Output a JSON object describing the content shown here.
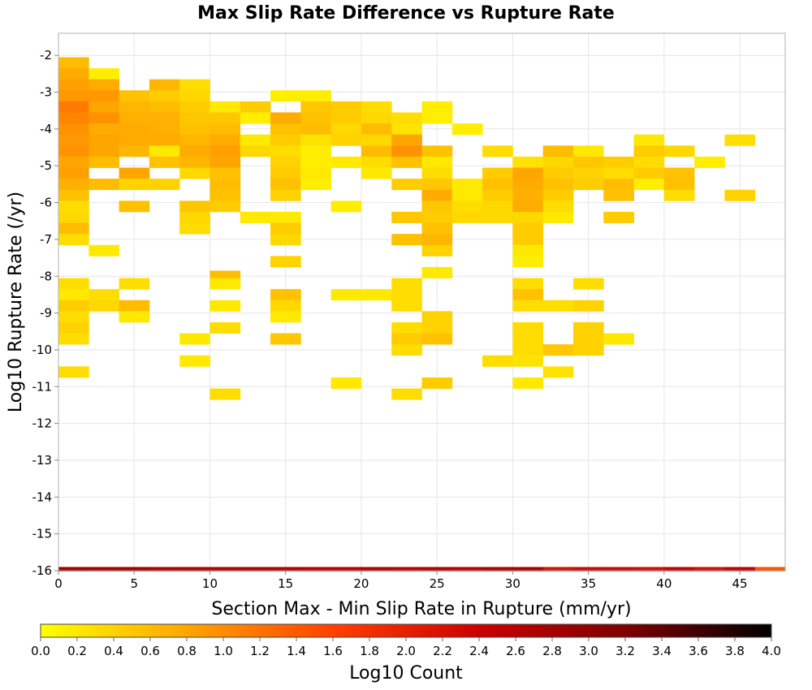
{
  "chart_data": {
    "type": "heatmap",
    "title": "Max Slip Rate Difference vs Rupture Rate",
    "xlabel": "Section Max - Min Slip Rate in Rupture (mm/yr)",
    "ylabel": "Log10 Rupture Rate (/yr)",
    "xlim": [
      0,
      48
    ],
    "ylim": [
      -16,
      -1.4
    ],
    "x_ticks": [
      "0",
      "5",
      "10",
      "15",
      "20",
      "25",
      "30",
      "35",
      "40",
      "45"
    ],
    "y_ticks": [
      "-2",
      "-3",
      "-4",
      "-5",
      "-6",
      "-7",
      "-8",
      "-9",
      "-10",
      "-11",
      "-12",
      "-13",
      "-14",
      "-15",
      "-16"
    ],
    "grid": true,
    "bin_width_x": 2,
    "bin_height_y": 0.3,
    "colorbar": {
      "label": "Log10 Count",
      "min": 0,
      "max": 4,
      "ticks": [
        "0.0",
        "0.2",
        "0.4",
        "0.6",
        "0.8",
        "1.0",
        "1.2",
        "1.4",
        "1.6",
        "1.8",
        "2.0",
        "2.2",
        "2.4",
        "2.6",
        "2.8",
        "3.0",
        "3.2",
        "3.4",
        "3.6",
        "3.8",
        "4.0"
      ],
      "palette": [
        "#ffff00",
        "#ffa500",
        "#ff4000",
        "#cc0000",
        "#800000",
        "#000000"
      ]
    },
    "cells": [
      {
        "x": 0,
        "y": -2.2,
        "v": 0.6
      },
      {
        "x": 0,
        "y": -2.5,
        "v": 0.75
      },
      {
        "x": 0,
        "y": -2.8,
        "v": 0.85
      },
      {
        "x": 0,
        "y": -3.1,
        "v": 0.9
      },
      {
        "x": 0,
        "y": -3.4,
        "v": 1.15
      },
      {
        "x": 0,
        "y": -3.7,
        "v": 1.05
      },
      {
        "x": 0,
        "y": -4.0,
        "v": 0.95
      },
      {
        "x": 0,
        "y": -4.3,
        "v": 0.9
      },
      {
        "x": 0,
        "y": -4.6,
        "v": 0.95
      },
      {
        "x": 0,
        "y": -4.9,
        "v": 0.8
      },
      {
        "x": 0,
        "y": -5.2,
        "v": 0.85
      },
      {
        "x": 0,
        "y": -5.5,
        "v": 0.7
      },
      {
        "x": 0,
        "y": -5.8,
        "v": 0.55
      },
      {
        "x": 0,
        "y": -6.1,
        "v": 0.3
      },
      {
        "x": 0,
        "y": -6.4,
        "v": 0.35
      },
      {
        "x": 0,
        "y": -6.7,
        "v": 0.6
      },
      {
        "x": 0,
        "y": -7.0,
        "v": 0.3
      },
      {
        "x": 0,
        "y": -8.2,
        "v": 0.3
      },
      {
        "x": 0,
        "y": -8.5,
        "v": 0.2
      },
      {
        "x": 0,
        "y": -8.8,
        "v": 0.45
      },
      {
        "x": 0,
        "y": -9.1,
        "v": 0.3
      },
      {
        "x": 0,
        "y": -9.4,
        "v": 0.4
      },
      {
        "x": 0,
        "y": -9.7,
        "v": 0.3
      },
      {
        "x": 0,
        "y": -10.6,
        "v": 0.3
      },
      {
        "x": 2,
        "y": -2.5,
        "v": 0.15
      },
      {
        "x": 2,
        "y": -2.8,
        "v": 0.75
      },
      {
        "x": 2,
        "y": -3.1,
        "v": 0.9
      },
      {
        "x": 2,
        "y": -3.4,
        "v": 0.8
      },
      {
        "x": 2,
        "y": -3.7,
        "v": 0.95
      },
      {
        "x": 2,
        "y": -4.0,
        "v": 0.75
      },
      {
        "x": 2,
        "y": -4.3,
        "v": 0.8
      },
      {
        "x": 2,
        "y": -4.6,
        "v": 0.8
      },
      {
        "x": 2,
        "y": -4.9,
        "v": 0.6
      },
      {
        "x": 2,
        "y": -5.5,
        "v": 0.6
      },
      {
        "x": 2,
        "y": -7.3,
        "v": 0.2
      },
      {
        "x": 2,
        "y": -8.5,
        "v": 0.3
      },
      {
        "x": 2,
        "y": -8.8,
        "v": 0.35
      },
      {
        "x": 4,
        "y": -3.1,
        "v": 0.55
      },
      {
        "x": 4,
        "y": -3.4,
        "v": 0.65
      },
      {
        "x": 4,
        "y": -3.7,
        "v": 0.7
      },
      {
        "x": 4,
        "y": -4.0,
        "v": 0.75
      },
      {
        "x": 4,
        "y": -4.3,
        "v": 0.75
      },
      {
        "x": 4,
        "y": -4.6,
        "v": 0.65
      },
      {
        "x": 4,
        "y": -5.2,
        "v": 0.8
      },
      {
        "x": 4,
        "y": -5.5,
        "v": 0.4
      },
      {
        "x": 4,
        "y": -6.1,
        "v": 0.55
      },
      {
        "x": 4,
        "y": -8.2,
        "v": 0.3
      },
      {
        "x": 4,
        "y": -8.8,
        "v": 0.6
      },
      {
        "x": 4,
        "y": -9.1,
        "v": 0.2
      },
      {
        "x": 6,
        "y": -2.8,
        "v": 0.65
      },
      {
        "x": 6,
        "y": -3.1,
        "v": 0.45
      },
      {
        "x": 6,
        "y": -3.4,
        "v": 0.6
      },
      {
        "x": 6,
        "y": -3.7,
        "v": 0.7
      },
      {
        "x": 6,
        "y": -4.0,
        "v": 0.7
      },
      {
        "x": 6,
        "y": -4.3,
        "v": 0.75
      },
      {
        "x": 6,
        "y": -4.6,
        "v": 0.2
      },
      {
        "x": 6,
        "y": -4.9,
        "v": 0.55
      },
      {
        "x": 6,
        "y": -5.5,
        "v": 0.4
      },
      {
        "x": 8,
        "y": -2.8,
        "v": 0.3
      },
      {
        "x": 8,
        "y": -3.1,
        "v": 0.35
      },
      {
        "x": 8,
        "y": -3.4,
        "v": 0.45
      },
      {
        "x": 8,
        "y": -3.7,
        "v": 0.5
      },
      {
        "x": 8,
        "y": -4.0,
        "v": 0.55
      },
      {
        "x": 8,
        "y": -4.3,
        "v": 0.65
      },
      {
        "x": 8,
        "y": -4.6,
        "v": 0.75
      },
      {
        "x": 8,
        "y": -4.9,
        "v": 0.65
      },
      {
        "x": 8,
        "y": -5.2,
        "v": 0.35
      },
      {
        "x": 8,
        "y": -6.1,
        "v": 0.5
      },
      {
        "x": 8,
        "y": -6.4,
        "v": 0.35
      },
      {
        "x": 8,
        "y": -6.7,
        "v": 0.3
      },
      {
        "x": 8,
        "y": -9.7,
        "v": 0.2
      },
      {
        "x": 8,
        "y": -10.3,
        "v": 0.2
      },
      {
        "x": 10,
        "y": -3.4,
        "v": 0.2
      },
      {
        "x": 10,
        "y": -3.7,
        "v": 0.5
      },
      {
        "x": 10,
        "y": -4.0,
        "v": 0.6
      },
      {
        "x": 10,
        "y": -4.3,
        "v": 0.75
      },
      {
        "x": 10,
        "y": -4.6,
        "v": 0.85
      },
      {
        "x": 10,
        "y": -4.9,
        "v": 0.8
      },
      {
        "x": 10,
        "y": -5.2,
        "v": 0.55
      },
      {
        "x": 10,
        "y": -5.5,
        "v": 0.6
      },
      {
        "x": 10,
        "y": -5.8,
        "v": 0.55
      },
      {
        "x": 10,
        "y": -6.1,
        "v": 0.45
      },
      {
        "x": 10,
        "y": -8.0,
        "v": 0.6
      },
      {
        "x": 10,
        "y": -8.2,
        "v": 0.2
      },
      {
        "x": 10,
        "y": -8.8,
        "v": 0.2
      },
      {
        "x": 10,
        "y": -9.4,
        "v": 0.3
      },
      {
        "x": 10,
        "y": -11.2,
        "v": 0.3
      },
      {
        "x": 12,
        "y": -3.4,
        "v": 0.45
      },
      {
        "x": 12,
        "y": -3.7,
        "v": 0.15
      },
      {
        "x": 12,
        "y": -4.3,
        "v": 0.2
      },
      {
        "x": 12,
        "y": -4.6,
        "v": 0.35
      },
      {
        "x": 12,
        "y": -6.4,
        "v": 0.2
      },
      {
        "x": 14,
        "y": -3.1,
        "v": 0.15
      },
      {
        "x": 14,
        "y": -3.7,
        "v": 0.75
      },
      {
        "x": 14,
        "y": -4.0,
        "v": 0.55
      },
      {
        "x": 14,
        "y": -4.3,
        "v": 0.45
      },
      {
        "x": 14,
        "y": -4.6,
        "v": 0.3
      },
      {
        "x": 14,
        "y": -4.9,
        "v": 0.4
      },
      {
        "x": 14,
        "y": -5.2,
        "v": 0.45
      },
      {
        "x": 14,
        "y": -5.5,
        "v": 0.55
      },
      {
        "x": 14,
        "y": -5.8,
        "v": 0.4
      },
      {
        "x": 14,
        "y": -6.4,
        "v": 0.2
      },
      {
        "x": 14,
        "y": -6.7,
        "v": 0.45
      },
      {
        "x": 14,
        "y": -7.0,
        "v": 0.35
      },
      {
        "x": 14,
        "y": -7.6,
        "v": 0.4
      },
      {
        "x": 14,
        "y": -8.5,
        "v": 0.55
      },
      {
        "x": 14,
        "y": -8.8,
        "v": 0.35
      },
      {
        "x": 14,
        "y": -9.1,
        "v": 0.2
      },
      {
        "x": 14,
        "y": -9.7,
        "v": 0.5
      },
      {
        "x": 16,
        "y": -3.1,
        "v": 0.15
      },
      {
        "x": 16,
        "y": -3.4,
        "v": 0.5
      },
      {
        "x": 16,
        "y": -3.7,
        "v": 0.55
      },
      {
        "x": 16,
        "y": -4.0,
        "v": 0.6
      },
      {
        "x": 16,
        "y": -4.3,
        "v": 0.25
      },
      {
        "x": 16,
        "y": -4.6,
        "v": 0.15
      },
      {
        "x": 16,
        "y": -4.9,
        "v": 0.15
      },
      {
        "x": 16,
        "y": -5.2,
        "v": 0.2
      },
      {
        "x": 16,
        "y": -5.5,
        "v": 0.15
      },
      {
        "x": 18,
        "y": -3.4,
        "v": 0.45
      },
      {
        "x": 18,
        "y": -3.7,
        "v": 0.45
      },
      {
        "x": 18,
        "y": -4.0,
        "v": 0.35
      },
      {
        "x": 18,
        "y": -4.3,
        "v": 0.4
      },
      {
        "x": 18,
        "y": -4.9,
        "v": 0.2
      },
      {
        "x": 18,
        "y": -6.1,
        "v": 0.15
      },
      {
        "x": 18,
        "y": -8.5,
        "v": 0.2
      },
      {
        "x": 18,
        "y": -10.9,
        "v": 0.2
      },
      {
        "x": 20,
        "y": -3.4,
        "v": 0.3
      },
      {
        "x": 20,
        "y": -3.7,
        "v": 0.35
      },
      {
        "x": 20,
        "y": -4.0,
        "v": 0.6
      },
      {
        "x": 20,
        "y": -4.3,
        "v": 0.35
      },
      {
        "x": 20,
        "y": -4.6,
        "v": 0.6
      },
      {
        "x": 20,
        "y": -4.9,
        "v": 0.3
      },
      {
        "x": 20,
        "y": -5.2,
        "v": 0.2
      },
      {
        "x": 20,
        "y": -8.5,
        "v": 0.2
      },
      {
        "x": 22,
        "y": -3.7,
        "v": 0.3
      },
      {
        "x": 22,
        "y": -4.0,
        "v": 0.25
      },
      {
        "x": 22,
        "y": -4.3,
        "v": 0.8
      },
      {
        "x": 22,
        "y": -4.6,
        "v": 0.95
      },
      {
        "x": 22,
        "y": -4.9,
        "v": 0.55
      },
      {
        "x": 22,
        "y": -5.5,
        "v": 0.45
      },
      {
        "x": 22,
        "y": -6.4,
        "v": 0.5
      },
      {
        "x": 22,
        "y": -7.0,
        "v": 0.55
      },
      {
        "x": 22,
        "y": -8.2,
        "v": 0.3
      },
      {
        "x": 22,
        "y": -8.5,
        "v": 0.3
      },
      {
        "x": 22,
        "y": -8.8,
        "v": 0.3
      },
      {
        "x": 22,
        "y": -9.4,
        "v": 0.3
      },
      {
        "x": 22,
        "y": -9.7,
        "v": 0.45
      },
      {
        "x": 22,
        "y": -10.0,
        "v": 0.3
      },
      {
        "x": 22,
        "y": -11.2,
        "v": 0.3
      },
      {
        "x": 24,
        "y": -3.4,
        "v": 0.15
      },
      {
        "x": 24,
        "y": -3.7,
        "v": 0.15
      },
      {
        "x": 24,
        "y": -4.6,
        "v": 0.55
      },
      {
        "x": 24,
        "y": -4.9,
        "v": 0.2
      },
      {
        "x": 24,
        "y": -5.2,
        "v": 0.3
      },
      {
        "x": 24,
        "y": -5.5,
        "v": 0.5
      },
      {
        "x": 24,
        "y": -5.8,
        "v": 0.75
      },
      {
        "x": 24,
        "y": -6.1,
        "v": 0.5
      },
      {
        "x": 24,
        "y": -6.4,
        "v": 0.45
      },
      {
        "x": 24,
        "y": -6.7,
        "v": 0.55
      },
      {
        "x": 24,
        "y": -7.0,
        "v": 0.65
      },
      {
        "x": 24,
        "y": -7.3,
        "v": 0.4
      },
      {
        "x": 24,
        "y": -7.9,
        "v": 0.2
      },
      {
        "x": 24,
        "y": -9.1,
        "v": 0.4
      },
      {
        "x": 24,
        "y": -9.4,
        "v": 0.4
      },
      {
        "x": 24,
        "y": -9.7,
        "v": 0.55
      },
      {
        "x": 24,
        "y": -10.9,
        "v": 0.45
      },
      {
        "x": 26,
        "y": -4.0,
        "v": 0.15
      },
      {
        "x": 26,
        "y": -5.5,
        "v": 0.2
      },
      {
        "x": 26,
        "y": -5.8,
        "v": 0.2
      },
      {
        "x": 26,
        "y": -6.1,
        "v": 0.3
      },
      {
        "x": 26,
        "y": -6.4,
        "v": 0.35
      },
      {
        "x": 28,
        "y": -4.6,
        "v": 0.3
      },
      {
        "x": 28,
        "y": -5.2,
        "v": 0.45
      },
      {
        "x": 28,
        "y": -5.5,
        "v": 0.55
      },
      {
        "x": 28,
        "y": -5.8,
        "v": 0.45
      },
      {
        "x": 28,
        "y": -6.1,
        "v": 0.35
      },
      {
        "x": 28,
        "y": -6.4,
        "v": 0.35
      },
      {
        "x": 28,
        "y": -10.3,
        "v": 0.3
      },
      {
        "x": 30,
        "y": -4.9,
        "v": 0.25
      },
      {
        "x": 30,
        "y": -5.2,
        "v": 0.8
      },
      {
        "x": 30,
        "y": -5.5,
        "v": 0.75
      },
      {
        "x": 30,
        "y": -5.8,
        "v": 0.7
      },
      {
        "x": 30,
        "y": -6.1,
        "v": 0.75
      },
      {
        "x": 30,
        "y": -6.4,
        "v": 0.35
      },
      {
        "x": 30,
        "y": -6.7,
        "v": 0.45
      },
      {
        "x": 30,
        "y": -7.0,
        "v": 0.45
      },
      {
        "x": 30,
        "y": -7.3,
        "v": 0.2
      },
      {
        "x": 30,
        "y": -7.6,
        "v": 0.15
      },
      {
        "x": 30,
        "y": -8.2,
        "v": 0.3
      },
      {
        "x": 30,
        "y": -8.5,
        "v": 0.55
      },
      {
        "x": 30,
        "y": -8.8,
        "v": 0.3
      },
      {
        "x": 30,
        "y": -9.4,
        "v": 0.3
      },
      {
        "x": 30,
        "y": -9.7,
        "v": 0.3
      },
      {
        "x": 30,
        "y": -10.0,
        "v": 0.3
      },
      {
        "x": 30,
        "y": -10.3,
        "v": 0.25
      },
      {
        "x": 30,
        "y": -10.9,
        "v": 0.2
      },
      {
        "x": 32,
        "y": -4.6,
        "v": 0.6
      },
      {
        "x": 32,
        "y": -4.9,
        "v": 0.35
      },
      {
        "x": 32,
        "y": -5.2,
        "v": 0.45
      },
      {
        "x": 32,
        "y": -5.5,
        "v": 0.55
      },
      {
        "x": 32,
        "y": -5.8,
        "v": 0.45
      },
      {
        "x": 32,
        "y": -6.1,
        "v": 0.3
      },
      {
        "x": 32,
        "y": -6.4,
        "v": 0.2
      },
      {
        "x": 32,
        "y": -8.8,
        "v": 0.3
      },
      {
        "x": 32,
        "y": -10.0,
        "v": 0.5
      },
      {
        "x": 32,
        "y": -10.6,
        "v": 0.25
      },
      {
        "x": 34,
        "y": -4.6,
        "v": 0.2
      },
      {
        "x": 34,
        "y": -4.9,
        "v": 0.5
      },
      {
        "x": 34,
        "y": -5.2,
        "v": 0.4
      },
      {
        "x": 34,
        "y": -5.5,
        "v": 0.45
      },
      {
        "x": 34,
        "y": -8.2,
        "v": 0.3
      },
      {
        "x": 34,
        "y": -8.8,
        "v": 0.4
      },
      {
        "x": 34,
        "y": -9.4,
        "v": 0.4
      },
      {
        "x": 34,
        "y": -9.7,
        "v": 0.4
      },
      {
        "x": 34,
        "y": -10.0,
        "v": 0.4
      },
      {
        "x": 36,
        "y": -4.9,
        "v": 0.45
      },
      {
        "x": 36,
        "y": -5.2,
        "v": 0.3
      },
      {
        "x": 36,
        "y": -5.5,
        "v": 0.6
      },
      {
        "x": 36,
        "y": -5.8,
        "v": 0.55
      },
      {
        "x": 36,
        "y": -6.4,
        "v": 0.45
      },
      {
        "x": 36,
        "y": -9.7,
        "v": 0.2
      },
      {
        "x": 38,
        "y": -4.3,
        "v": 0.2
      },
      {
        "x": 38,
        "y": -4.6,
        "v": 0.45
      },
      {
        "x": 38,
        "y": -4.9,
        "v": 0.3
      },
      {
        "x": 38,
        "y": -5.2,
        "v": 0.45
      },
      {
        "x": 38,
        "y": -5.5,
        "v": 0.15
      },
      {
        "x": 40,
        "y": -4.6,
        "v": 0.35
      },
      {
        "x": 40,
        "y": -5.2,
        "v": 0.55
      },
      {
        "x": 40,
        "y": -5.5,
        "v": 0.55
      },
      {
        "x": 40,
        "y": -5.8,
        "v": 0.3
      },
      {
        "x": 42,
        "y": -4.9,
        "v": 0.15
      },
      {
        "x": 44,
        "y": -4.3,
        "v": 0.3
      },
      {
        "x": 44,
        "y": -5.8,
        "v": 0.4
      }
    ],
    "floor_row": {
      "y": -16,
      "values": [
        2.8,
        2.75,
        2.8,
        2.65,
        2.7,
        2.6,
        2.65,
        2.6,
        2.55,
        2.55,
        2.6,
        2.55,
        2.6,
        2.55,
        2.7,
        2.75,
        2.2,
        2.3,
        2.3,
        2.25,
        2.4,
        2.25,
        2.45,
        1.45
      ]
    }
  }
}
